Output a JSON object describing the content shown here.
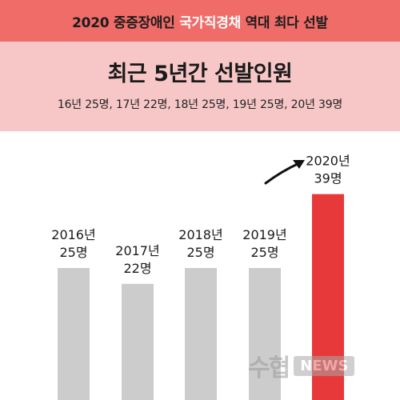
{
  "banner": {
    "part1": "2020 중증장애인",
    "highlight": "국가직경채",
    "part2": "역대 최다 선발"
  },
  "chart_data": {
    "type": "bar",
    "title": "최근 5년간 선발인원",
    "subtitle": "16년 25명, 17년 22명, 18년 25명, 19년 25명, 20년 39명",
    "categories": [
      "2016년",
      "2017년",
      "2018년",
      "2019년",
      "2020년"
    ],
    "values": [
      25,
      22,
      25,
      25,
      39
    ],
    "value_labels": [
      "25명",
      "22명",
      "25명",
      "25명",
      "39명"
    ],
    "ylim": [
      0,
      40
    ],
    "grid": false,
    "colors": [
      "#cccccc",
      "#cccccc",
      "#cccccc",
      "#cccccc",
      "#e8393a"
    ],
    "arrow_color": "#111111"
  },
  "watermark": {
    "text": "수협",
    "badge": "NEWS"
  }
}
